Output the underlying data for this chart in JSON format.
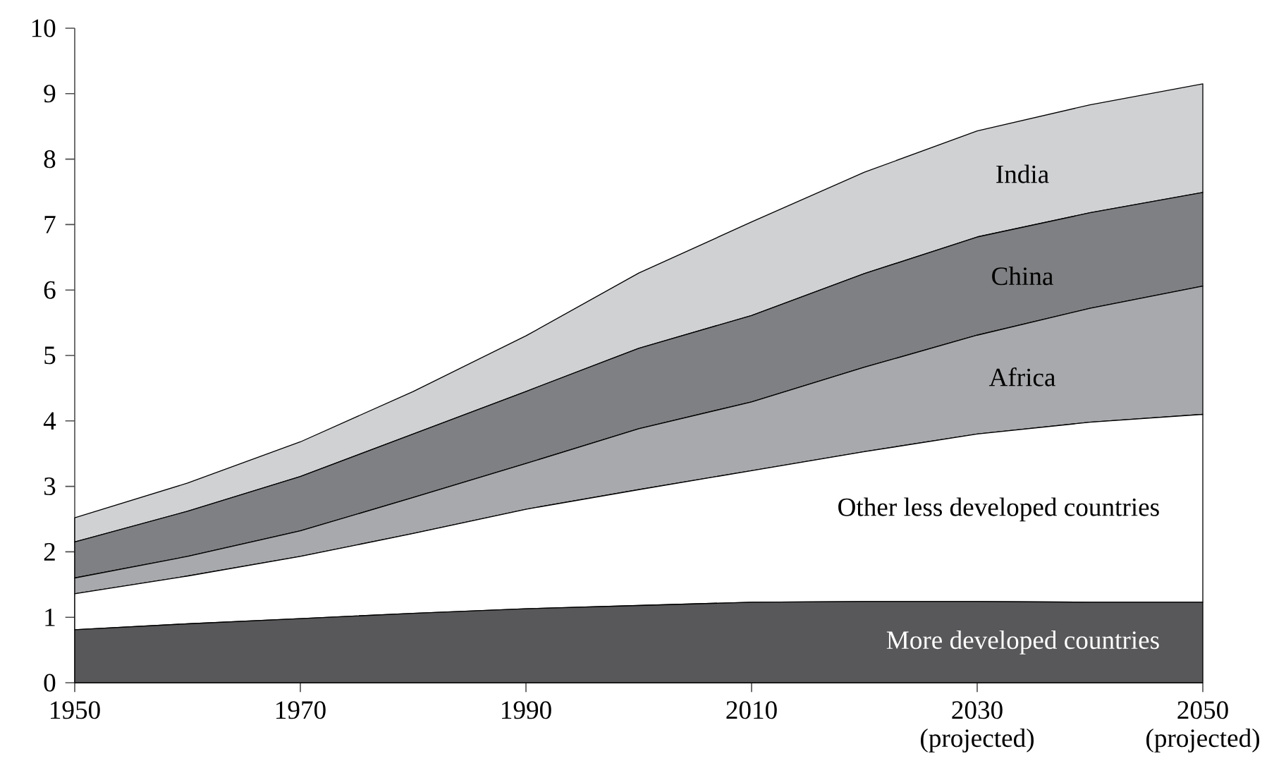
{
  "chart_data": {
    "type": "area",
    "stacked": true,
    "x": [
      1950,
      1960,
      1970,
      1980,
      1990,
      2000,
      2010,
      2020,
      2030,
      2040,
      2050
    ],
    "xlim": [
      1950,
      2050
    ],
    "ylim": [
      0,
      10
    ],
    "xticks": [
      1950,
      1970,
      1990,
      2010,
      {
        "value": 2030,
        "label": "2030 (projected)"
      },
      {
        "value": 2050,
        "label": "2050 (projected)"
      }
    ],
    "yticks": [
      0,
      1,
      2,
      3,
      4,
      5,
      6,
      7,
      8,
      9,
      10
    ],
    "series": [
      {
        "name": "More developed countries",
        "color": "#58585a",
        "values": [
          0.81,
          0.9,
          0.98,
          1.06,
          1.13,
          1.18,
          1.23,
          1.24,
          1.24,
          1.23,
          1.23
        ]
      },
      {
        "name": "Other less developed countries",
        "color": "#ffffff",
        "values": [
          0.55,
          0.73,
          0.95,
          1.22,
          1.52,
          1.77,
          2.01,
          2.29,
          2.56,
          2.75,
          2.87
        ]
      },
      {
        "name": "Africa",
        "color": "#a8a9ac",
        "values": [
          0.24,
          0.3,
          0.39,
          0.55,
          0.7,
          0.93,
          1.05,
          1.29,
          1.51,
          1.74,
          1.96
        ]
      },
      {
        "name": "China",
        "color": "#7f8083",
        "values": [
          0.55,
          0.69,
          0.83,
          0.97,
          1.1,
          1.23,
          1.32,
          1.43,
          1.5,
          1.46,
          1.43
        ]
      },
      {
        "name": "India",
        "color": "#d0d1d3",
        "values": [
          0.37,
          0.43,
          0.53,
          0.65,
          0.85,
          1.15,
          1.43,
          1.55,
          1.62,
          1.65,
          1.66
        ]
      }
    ]
  }
}
